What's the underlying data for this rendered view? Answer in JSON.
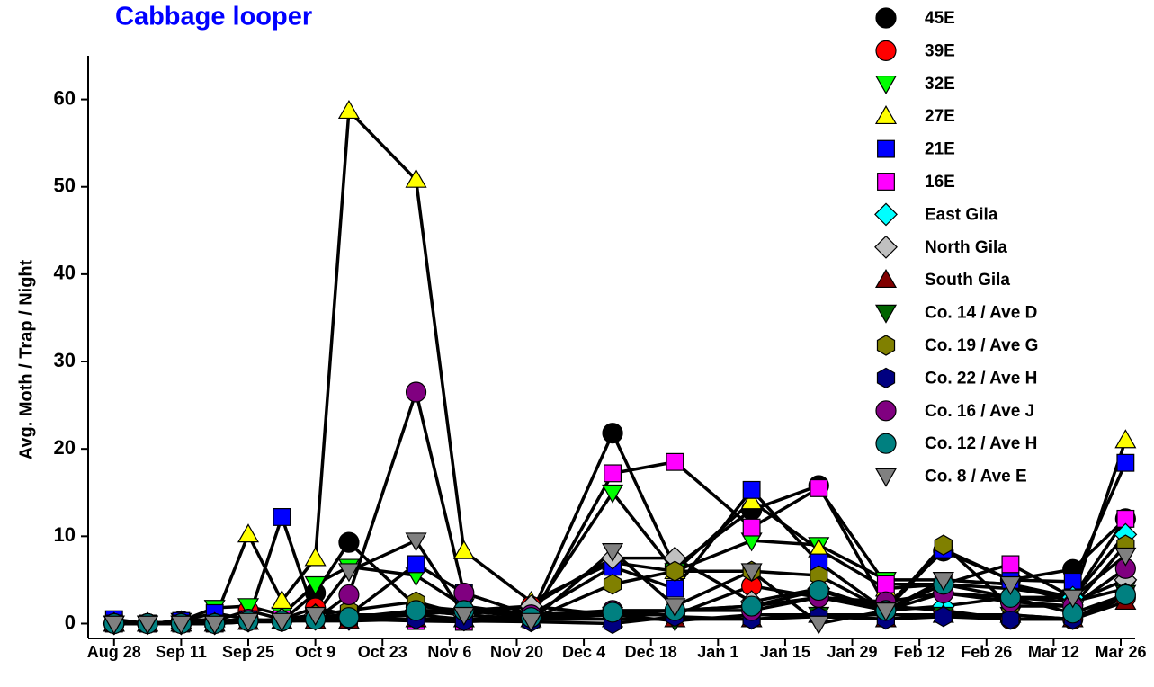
{
  "chart_data": {
    "type": "line",
    "title": "Cabbage looper",
    "y_label": "Avg. Moth / Trap / Night",
    "x": [
      0,
      7,
      14,
      21,
      28,
      35,
      42,
      49,
      63,
      73,
      87,
      104,
      117,
      133,
      147,
      161,
      173,
      187,
      200,
      211
    ],
    "xlim": [
      -5.4,
      213
    ],
    "ylim": [
      -1.7,
      65
    ],
    "xticks": [
      {
        "value": 0,
        "label": "Aug 28"
      },
      {
        "value": 14,
        "label": "Sep 11"
      },
      {
        "value": 28,
        "label": "Sep 25"
      },
      {
        "value": 42,
        "label": "Oct 9"
      },
      {
        "value": 56,
        "label": "Oct 23"
      },
      {
        "value": 70,
        "label": "Nov 6"
      },
      {
        "value": 84,
        "label": "Nov 20"
      },
      {
        "value": 98,
        "label": "Dec 4"
      },
      {
        "value": 112,
        "label": "Dec 18"
      },
      {
        "value": 126,
        "label": "Jan 1"
      },
      {
        "value": 140,
        "label": "Jan 15"
      },
      {
        "value": 154,
        "label": "Jan 29"
      },
      {
        "value": 168,
        "label": "Feb 12"
      },
      {
        "value": 182,
        "label": "Feb 26"
      },
      {
        "value": 196,
        "label": "Mar 12"
      },
      {
        "value": 210,
        "label": "Mar 26"
      }
    ],
    "yticks": [
      0,
      10,
      20,
      30,
      40,
      50,
      60
    ],
    "grid": false,
    "legend": "top-right",
    "line_color": "#000000",
    "series": [
      {
        "name": "45E",
        "color": "#000000",
        "marker": "circle",
        "values": [
          0,
          0,
          0.3,
          0.3,
          0.5,
          0.3,
          3.5,
          9.3,
          2,
          1.5,
          1,
          21.8,
          6.5,
          13,
          15.8,
          2,
          8.3,
          5,
          6.2,
          12
        ]
      },
      {
        "name": "39E",
        "color": "#ff0000",
        "marker": "circle",
        "values": [
          0,
          0,
          0,
          0.3,
          1.5,
          0.5,
          1.8,
          1,
          1,
          1.5,
          2,
          1,
          1,
          4.3,
          3,
          2,
          1.5,
          0.5,
          0.5,
          3
        ]
      },
      {
        "name": "32E",
        "color": "#00ff00",
        "marker": "triangle-down",
        "values": [
          0,
          0,
          0.3,
          1.8,
          2,
          1,
          4.5,
          6.5,
          5.5,
          2,
          1,
          15,
          6,
          9.5,
          9,
          5,
          5,
          4.5,
          2.5,
          4
        ]
      },
      {
        "name": "27E",
        "color": "#ffff00",
        "marker": "triangle-up",
        "values": [
          0,
          0,
          0.3,
          0.5,
          10.2,
          2.6,
          7.5,
          58.7,
          50.8,
          8.3,
          2.5,
          7,
          6,
          14,
          8.5,
          4,
          4.5,
          4,
          3,
          21
        ]
      },
      {
        "name": "21E",
        "color": "#0000ff",
        "marker": "square",
        "values": [
          0.5,
          0,
          0.3,
          1.2,
          0.5,
          12.2,
          0.8,
          1,
          6.8,
          3.5,
          1,
          6.5,
          4,
          15.3,
          7,
          1.5,
          8.5,
          5,
          4.8,
          18.4
        ]
      },
      {
        "name": "16E",
        "color": "#ff00ff",
        "marker": "square",
        "values": [
          0,
          0,
          0,
          0,
          0.3,
          0.5,
          0.5,
          0.5,
          0.3,
          0.2,
          0.5,
          17.2,
          18.5,
          11,
          15.5,
          4.5,
          4.5,
          6.8,
          3,
          12
        ]
      },
      {
        "name": "East Gila",
        "color": "#00ffff",
        "marker": "diamond",
        "values": [
          0,
          0,
          0,
          0,
          0.3,
          0.5,
          0.5,
          0.5,
          1.5,
          1,
          0.5,
          1,
          1.5,
          2,
          3,
          1.5,
          2,
          3,
          3,
          10.2
        ]
      },
      {
        "name": "North Gila",
        "color": "#c0c0c0",
        "marker": "diamond",
        "values": [
          0,
          0,
          0,
          0,
          0.3,
          0.5,
          1,
          0.5,
          1.5,
          1,
          2,
          7.5,
          7.5,
          2.5,
          4,
          1.5,
          3.5,
          3,
          2.5,
          5
        ]
      },
      {
        "name": "South Gila",
        "color": "#800000",
        "marker": "triangle-up",
        "values": [
          0,
          0,
          0,
          0,
          0.2,
          0.3,
          0.3,
          0.3,
          0.5,
          0.5,
          0.5,
          0.5,
          0.5,
          0.5,
          1,
          0.5,
          1,
          1,
          0.5,
          2.5
        ]
      },
      {
        "name": "Co. 14 / Ave D",
        "color": "#006400",
        "marker": "triangle-down",
        "values": [
          0,
          0,
          0,
          0,
          0.3,
          0.3,
          0.5,
          0.5,
          1,
          0.5,
          0.5,
          1,
          0.3,
          1,
          1,
          1,
          1,
          1,
          0.5,
          3.5
        ]
      },
      {
        "name": "Co. 19 / Ave G",
        "color": "#808000",
        "marker": "hexagon",
        "values": [
          0,
          0,
          0,
          0,
          0.3,
          0.3,
          1,
          1.5,
          2.5,
          1,
          0.5,
          4.5,
          6,
          6,
          5.5,
          1.5,
          9,
          2,
          2,
          9
        ]
      },
      {
        "name": "Co. 22 / Ave H",
        "color": "#000080",
        "marker": "hexagon",
        "values": [
          0,
          0,
          0,
          0,
          0.2,
          0.2,
          0.5,
          0.5,
          0.5,
          0.3,
          0.2,
          0,
          0.8,
          0.5,
          0.8,
          0.5,
          0.8,
          0.5,
          0.5,
          3.5
        ]
      },
      {
        "name": "Co. 16 / Ave J",
        "color": "#800080",
        "marker": "circle",
        "values": [
          0,
          0,
          0,
          0,
          0.5,
          0.3,
          0.5,
          3.3,
          26.5,
          3.5,
          1,
          1.5,
          1.5,
          1.5,
          3,
          2.5,
          3.5,
          2.5,
          2,
          6.3
        ]
      },
      {
        "name": "Co. 12 / Ave H",
        "color": "#008080",
        "marker": "circle",
        "values": [
          0,
          0,
          0,
          0,
          0.3,
          0.3,
          0.5,
          0.7,
          1.5,
          1.5,
          0.7,
          1.3,
          1.5,
          2,
          3.8,
          1.5,
          4.5,
          3,
          1.2,
          3.3
        ]
      },
      {
        "name": "Co. 8 / Ave E",
        "color": "#808080",
        "marker": "triangle-down",
        "values": [
          0,
          0,
          0,
          0,
          0.3,
          0.3,
          1,
          6,
          9.5,
          1,
          0.3,
          8.3,
          2,
          6,
          0,
          1.5,
          5,
          4.5,
          3,
          7.8
        ]
      }
    ]
  }
}
